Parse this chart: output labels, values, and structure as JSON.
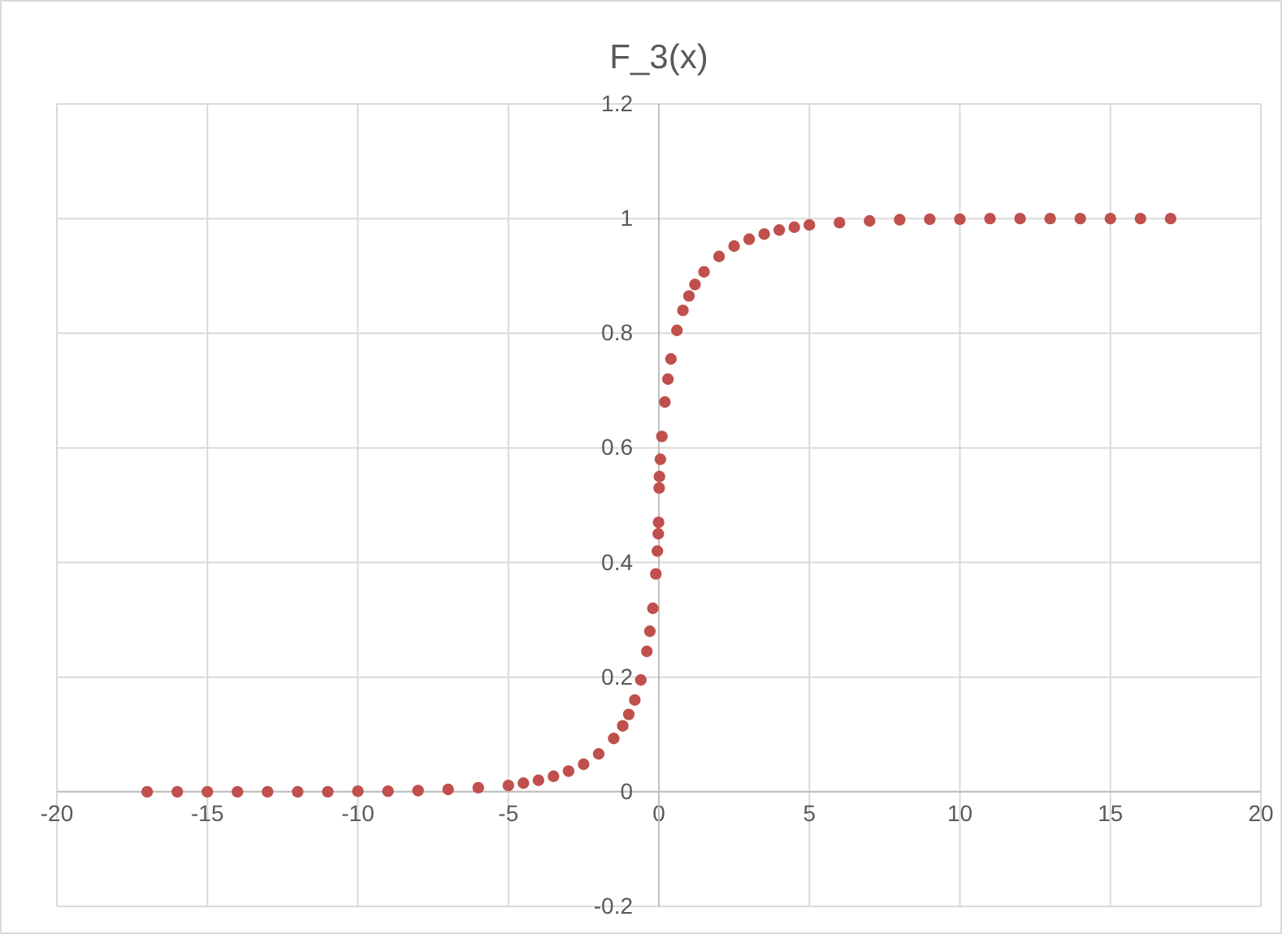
{
  "chart_data": {
    "type": "scatter",
    "title": "F_3(x)",
    "x": [
      -17,
      -16,
      -15,
      -14,
      -13,
      -12,
      -11,
      -10,
      -9,
      -8,
      -7,
      -6,
      -5,
      -4.5,
      -4,
      -3.5,
      -3,
      -2.5,
      -2,
      -1.5,
      -1.2,
      -1,
      -0.8,
      -0.6,
      -0.4,
      -0.3,
      -0.2,
      -0.1,
      -0.05,
      -0.02,
      -0.01,
      0.01,
      0.02,
      0.05,
      0.1,
      0.2,
      0.3,
      0.4,
      0.6,
      0.8,
      1,
      1.2,
      1.5,
      2,
      2.5,
      3,
      3.5,
      4,
      4.5,
      5,
      6,
      7,
      8,
      9,
      10,
      11,
      12,
      13,
      14,
      15,
      16,
      17
    ],
    "values": [
      0,
      0,
      0,
      0,
      0,
      0,
      0,
      0.001,
      0.001,
      0.002,
      0.004,
      0.007,
      0.011,
      0.015,
      0.02,
      0.027,
      0.036,
      0.048,
      0.066,
      0.093,
      0.115,
      0.135,
      0.16,
      0.195,
      0.245,
      0.28,
      0.32,
      0.38,
      0.42,
      0.45,
      0.47,
      0.53,
      0.55,
      0.58,
      0.62,
      0.68,
      0.72,
      0.755,
      0.805,
      0.84,
      0.865,
      0.885,
      0.907,
      0.934,
      0.952,
      0.964,
      0.973,
      0.98,
      0.985,
      0.989,
      0.993,
      0.996,
      0.998,
      0.999,
      0.999,
      1,
      1,
      1,
      1,
      1,
      1,
      1
    ],
    "color": "#c0504d",
    "marker": "circle",
    "xlim": [
      -20,
      20
    ],
    "xticks": [
      -20,
      -15,
      -10,
      -5,
      0,
      5,
      10,
      15,
      20
    ],
    "ylim": [
      -0.2,
      1.2
    ],
    "yticks": [
      -0.2,
      0,
      0.2,
      0.4,
      0.6,
      0.8,
      1,
      1.2
    ],
    "grid": true
  }
}
